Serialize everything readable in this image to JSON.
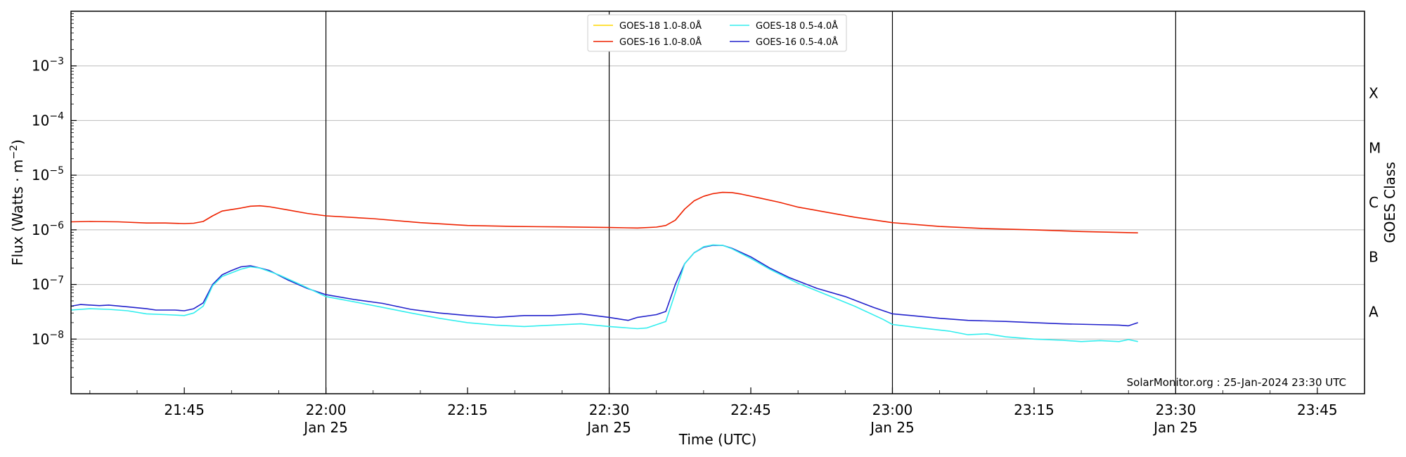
{
  "chart_data": {
    "type": "line",
    "title": "",
    "xlabel": "Time (UTC)",
    "ylabel": "Flux (Watts · m",
    "ylabel_sup": "−2",
    "ylabel_close": ")",
    "y2label": "GOES Class",
    "yscale": "log",
    "ylim": [
      1e-09,
      0.01
    ],
    "xlim": [
      "21:33",
      "23:50"
    ],
    "grid_y": true,
    "legend_position": "top-center",
    "annotation": "SolarMonitor.org : 25-Jan-2024 23:30 UTC",
    "x_ticks": [
      {
        "t": "21:45",
        "label": "21:45",
        "sub": ""
      },
      {
        "t": "22:00",
        "label": "22:00",
        "sub": "Jan 25"
      },
      {
        "t": "22:15",
        "label": "22:15",
        "sub": ""
      },
      {
        "t": "22:30",
        "label": "22:30",
        "sub": "Jan 25"
      },
      {
        "t": "22:45",
        "label": "22:45",
        "sub": ""
      },
      {
        "t": "23:00",
        "label": "23:00",
        "sub": "Jan 25"
      },
      {
        "t": "23:15",
        "label": "23:15",
        "sub": ""
      },
      {
        "t": "23:30",
        "label": "23:30",
        "sub": "Jan 25"
      },
      {
        "t": "23:45",
        "label": "23:45",
        "sub": ""
      }
    ],
    "day_lines": [
      "22:00",
      "22:30",
      "23:00",
      "23:30"
    ],
    "y_ticks": [
      {
        "exp": -8,
        "label": "10",
        "sup": "−8"
      },
      {
        "exp": -7,
        "label": "10",
        "sup": "−7"
      },
      {
        "exp": -6,
        "label": "10",
        "sup": "−6"
      },
      {
        "exp": -5,
        "label": "10",
        "sup": "−5"
      },
      {
        "exp": -4,
        "label": "10",
        "sup": "−4"
      },
      {
        "exp": -3,
        "label": "10",
        "sup": "−3"
      }
    ],
    "goes_classes": [
      {
        "label": "A",
        "exp": -7.5
      },
      {
        "label": "B",
        "exp": -6.5
      },
      {
        "label": "C",
        "exp": -5.5
      },
      {
        "label": "M",
        "exp": -4.5
      },
      {
        "label": "X",
        "exp": -3.5
      }
    ],
    "legend": [
      {
        "name": "GOES-18 1.0-8.0Å",
        "color": "#ffd700"
      },
      {
        "name": "GOES-18 0.5-4.0Å",
        "color": "#33eeee"
      },
      {
        "name": "GOES-16 1.0-8.0Å",
        "color": "#ee2200"
      },
      {
        "name": "GOES-16 0.5-4.0Å",
        "color": "#2222cc"
      }
    ],
    "series": [
      {
        "name": "GOES-16 1.0-8.0Å",
        "color": "#ee2200",
        "points": [
          [
            "21:33",
            1.4e-06
          ],
          [
            "21:35",
            1.42e-06
          ],
          [
            "21:38",
            1.4e-06
          ],
          [
            "21:41",
            1.33e-06
          ],
          [
            "21:43",
            1.33e-06
          ],
          [
            "21:45",
            1.3e-06
          ],
          [
            "21:46",
            1.32e-06
          ],
          [
            "21:47",
            1.42e-06
          ],
          [
            "21:48",
            1.8e-06
          ],
          [
            "21:49",
            2.2e-06
          ],
          [
            "21:51",
            2.5e-06
          ],
          [
            "21:52",
            2.7e-06
          ],
          [
            "21:53",
            2.75e-06
          ],
          [
            "21:54",
            2.65e-06
          ],
          [
            "21:56",
            2.3e-06
          ],
          [
            "21:58",
            2e-06
          ],
          [
            "22:00",
            1.8e-06
          ],
          [
            "22:05",
            1.6e-06
          ],
          [
            "22:10",
            1.35e-06
          ],
          [
            "22:15",
            1.2e-06
          ],
          [
            "22:20",
            1.15e-06
          ],
          [
            "22:25",
            1.13e-06
          ],
          [
            "22:30",
            1.1e-06
          ],
          [
            "22:33",
            1.08e-06
          ],
          [
            "22:35",
            1.12e-06
          ],
          [
            "22:36",
            1.2e-06
          ],
          [
            "22:37",
            1.5e-06
          ],
          [
            "22:38",
            2.4e-06
          ],
          [
            "22:39",
            3.4e-06
          ],
          [
            "22:40",
            4.1e-06
          ],
          [
            "22:41",
            4.6e-06
          ],
          [
            "22:42",
            4.85e-06
          ],
          [
            "22:43",
            4.8e-06
          ],
          [
            "22:44",
            4.5e-06
          ],
          [
            "22:46",
            3.8e-06
          ],
          [
            "22:48",
            3.2e-06
          ],
          [
            "22:50",
            2.6e-06
          ],
          [
            "22:53",
            2.1e-06
          ],
          [
            "22:56",
            1.7e-06
          ],
          [
            "23:00",
            1.35e-06
          ],
          [
            "23:05",
            1.15e-06
          ],
          [
            "23:10",
            1.05e-06
          ],
          [
            "23:15",
            1e-06
          ],
          [
            "23:20",
            9.3e-07
          ],
          [
            "23:26",
            8.8e-07
          ]
        ]
      },
      {
        "name": "GOES-16 0.5-4.0Å",
        "color": "#2222cc",
        "points": [
          [
            "21:33",
            4e-08
          ],
          [
            "21:34",
            4.3e-08
          ],
          [
            "21:36",
            4.1e-08
          ],
          [
            "21:37",
            4.2e-08
          ],
          [
            "21:39",
            3.9e-08
          ],
          [
            "21:41",
            3.6e-08
          ],
          [
            "21:42",
            3.4e-08
          ],
          [
            "21:44",
            3.4e-08
          ],
          [
            "21:45",
            3.3e-08
          ],
          [
            "21:46",
            3.6e-08
          ],
          [
            "21:47",
            4.6e-08
          ],
          [
            "21:48",
            1e-07
          ],
          [
            "21:49",
            1.5e-07
          ],
          [
            "21:50",
            1.8e-07
          ],
          [
            "21:51",
            2.1e-07
          ],
          [
            "21:52",
            2.2e-07
          ],
          [
            "21:53",
            2e-07
          ],
          [
            "21:54",
            1.8e-07
          ],
          [
            "21:56",
            1.2e-07
          ],
          [
            "21:58",
            8.5e-08
          ],
          [
            "22:00",
            6.5e-08
          ],
          [
            "22:03",
            5.3e-08
          ],
          [
            "22:06",
            4.5e-08
          ],
          [
            "22:09",
            3.5e-08
          ],
          [
            "22:12",
            3e-08
          ],
          [
            "22:15",
            2.7e-08
          ],
          [
            "22:18",
            2.5e-08
          ],
          [
            "22:21",
            2.7e-08
          ],
          [
            "22:24",
            2.7e-08
          ],
          [
            "22:27",
            2.9e-08
          ],
          [
            "22:30",
            2.5e-08
          ],
          [
            "22:32",
            2.2e-08
          ],
          [
            "22:33",
            2.5e-08
          ],
          [
            "22:35",
            2.8e-08
          ],
          [
            "22:36",
            3.2e-08
          ],
          [
            "22:37",
            1e-07
          ],
          [
            "22:38",
            2.4e-07
          ],
          [
            "22:39",
            3.8e-07
          ],
          [
            "22:40",
            4.8e-07
          ],
          [
            "22:41",
            5.2e-07
          ],
          [
            "22:42",
            5.2e-07
          ],
          [
            "22:43",
            4.6e-07
          ],
          [
            "22:45",
            3.2e-07
          ],
          [
            "22:47",
            2e-07
          ],
          [
            "22:49",
            1.35e-07
          ],
          [
            "22:52",
            8.5e-08
          ],
          [
            "22:55",
            6e-08
          ],
          [
            "22:58",
            3.8e-08
          ],
          [
            "23:00",
            2.9e-08
          ],
          [
            "23:02",
            2.7e-08
          ],
          [
            "23:05",
            2.4e-08
          ],
          [
            "23:08",
            2.2e-08
          ],
          [
            "23:12",
            2.1e-08
          ],
          [
            "23:15",
            2e-08
          ],
          [
            "23:18",
            1.9e-08
          ],
          [
            "23:21",
            1.85e-08
          ],
          [
            "23:24",
            1.8e-08
          ],
          [
            "23:25",
            1.75e-08
          ],
          [
            "23:26",
            2e-08
          ]
        ]
      },
      {
        "name": "GOES-18 0.5-4.0Å",
        "color": "#33eeee",
        "points": [
          [
            "21:33",
            3.4e-08
          ],
          [
            "21:35",
            3.6e-08
          ],
          [
            "21:37",
            3.5e-08
          ],
          [
            "21:39",
            3.3e-08
          ],
          [
            "21:41",
            2.9e-08
          ],
          [
            "21:43",
            2.8e-08
          ],
          [
            "21:45",
            2.7e-08
          ],
          [
            "21:46",
            3e-08
          ],
          [
            "21:47",
            4e-08
          ],
          [
            "21:48",
            9.5e-08
          ],
          [
            "21:49",
            1.4e-07
          ],
          [
            "21:51",
            1.9e-07
          ],
          [
            "21:52",
            2.1e-07
          ],
          [
            "21:53",
            2e-07
          ],
          [
            "21:55",
            1.5e-07
          ],
          [
            "21:57",
            1.05e-07
          ],
          [
            "22:00",
            6e-08
          ],
          [
            "22:03",
            4.8e-08
          ],
          [
            "22:06",
            3.8e-08
          ],
          [
            "22:09",
            3e-08
          ],
          [
            "22:12",
            2.4e-08
          ],
          [
            "22:15",
            2e-08
          ],
          [
            "22:18",
            1.8e-08
          ],
          [
            "22:21",
            1.7e-08
          ],
          [
            "22:24",
            1.8e-08
          ],
          [
            "22:27",
            1.9e-08
          ],
          [
            "22:30",
            1.7e-08
          ],
          [
            "22:33",
            1.55e-08
          ],
          [
            "22:34",
            1.6e-08
          ],
          [
            "22:36",
            2.1e-08
          ],
          [
            "22:37",
            7e-08
          ],
          [
            "22:38",
            2.4e-07
          ],
          [
            "22:39",
            3.8e-07
          ],
          [
            "22:40",
            4.9e-07
          ],
          [
            "22:41",
            5.3e-07
          ],
          [
            "22:42",
            5.2e-07
          ],
          [
            "22:43",
            4.5e-07
          ],
          [
            "22:45",
            3e-07
          ],
          [
            "22:47",
            1.9e-07
          ],
          [
            "22:50",
            1.05e-07
          ],
          [
            "22:53",
            6.5e-08
          ],
          [
            "22:56",
            4e-08
          ],
          [
            "22:59",
            2.3e-08
          ],
          [
            "23:00",
            1.85e-08
          ],
          [
            "23:03",
            1.6e-08
          ],
          [
            "23:06",
            1.4e-08
          ],
          [
            "23:08",
            1.2e-08
          ],
          [
            "23:10",
            1.25e-08
          ],
          [
            "23:12",
            1.1e-08
          ],
          [
            "23:15",
            1e-08
          ],
          [
            "23:18",
            9.5e-09
          ],
          [
            "23:20",
            9e-09
          ],
          [
            "23:22",
            9.4e-09
          ],
          [
            "23:24",
            9e-09
          ],
          [
            "23:25",
            9.8e-09
          ],
          [
            "23:26",
            9e-09
          ]
        ]
      }
    ]
  }
}
